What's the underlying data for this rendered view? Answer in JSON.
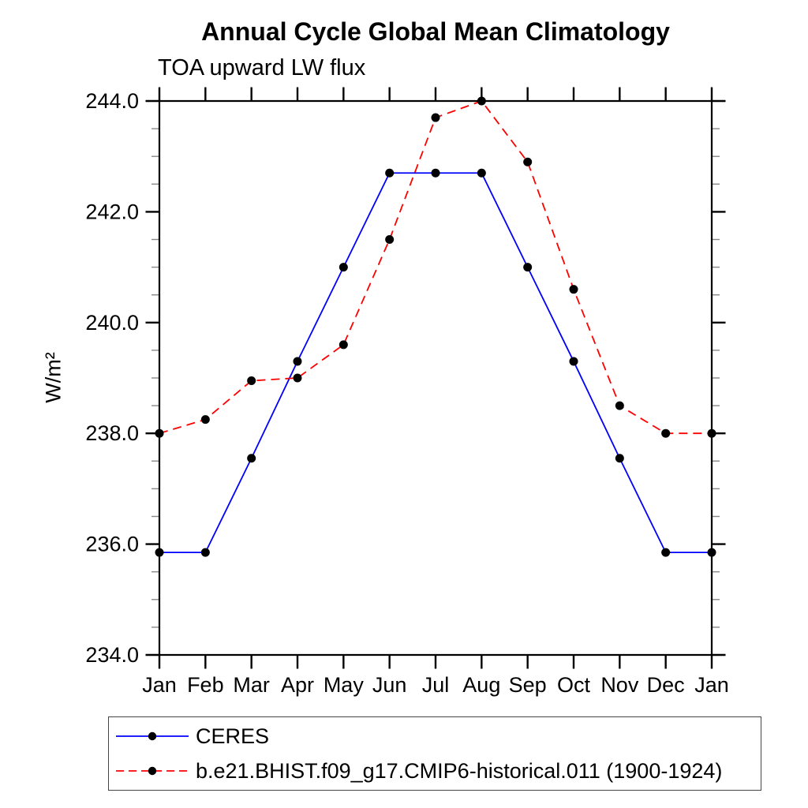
{
  "chart_data": {
    "type": "line",
    "title": "Annual Cycle Global Mean Climatology",
    "subtitle": "TOA upward LW flux",
    "ylabel": "W/m²",
    "categories": [
      "Jan",
      "Feb",
      "Mar",
      "Apr",
      "May",
      "Jun",
      "Jul",
      "Aug",
      "Sep",
      "Oct",
      "Nov",
      "Dec",
      "Jan"
    ],
    "series": [
      {
        "name": "CERES",
        "color": "#0000ff",
        "line_style": "solid",
        "marker": "black-dot",
        "values": [
          235.85,
          235.85,
          237.55,
          239.3,
          241.0,
          242.7,
          242.7,
          242.7,
          241.0,
          239.3,
          237.55,
          235.85,
          235.85
        ]
      },
      {
        "name": "b.e21.BHIST.f09_g17.CMIP6-historical.011 (1900-1924)",
        "color": "#ff0000",
        "line_style": "dashed",
        "marker": "black-dot",
        "values": [
          238.0,
          238.25,
          238.95,
          239.0,
          239.6,
          241.5,
          243.7,
          244.0,
          242.9,
          240.6,
          238.5,
          238.0,
          238.0
        ]
      }
    ],
    "ylim": [
      234.0,
      244.0
    ],
    "yticks": [
      234.0,
      236.0,
      238.0,
      240.0,
      242.0,
      244.0
    ],
    "ytick_labels": [
      "234.0",
      "236.0",
      "238.0",
      "240.0",
      "242.0",
      "244.0"
    ],
    "yminor_step": 0.5,
    "grid": false,
    "legend_position": "bottom-left",
    "colors": {
      "axis": "#000000",
      "major_tick": "#000000",
      "minor_tick": "#888888",
      "marker": "#000000",
      "background": "#ffffff"
    }
  }
}
